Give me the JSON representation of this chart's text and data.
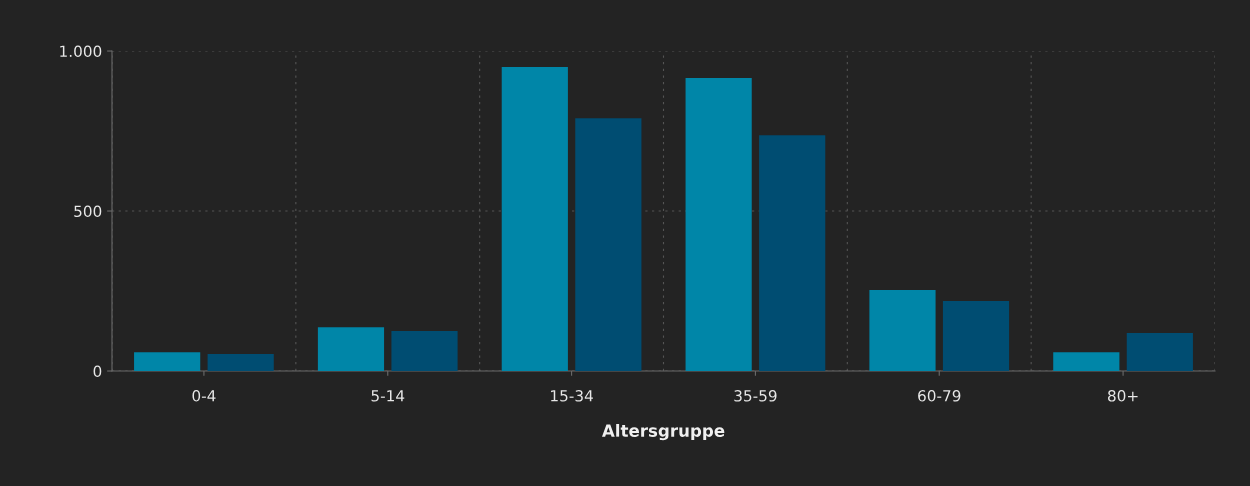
{
  "chart_data": {
    "type": "bar",
    "xlabel": "Altersgruppe",
    "categories": [
      "0-4",
      "5-14",
      "15-34",
      "35-59",
      "60-79",
      "80+"
    ],
    "series": [
      {
        "color": "#0086a8",
        "values": [
          59,
          137,
          950,
          916,
          253,
          59
        ]
      },
      {
        "color": "#004d72",
        "values": [
          53,
          125,
          790,
          737,
          219,
          119
        ]
      }
    ],
    "ylim": [
      0,
      1000
    ],
    "yticks": [
      0,
      500,
      {
        "value": 1000,
        "label": "1.000"
      }
    ],
    "grid": true
  }
}
